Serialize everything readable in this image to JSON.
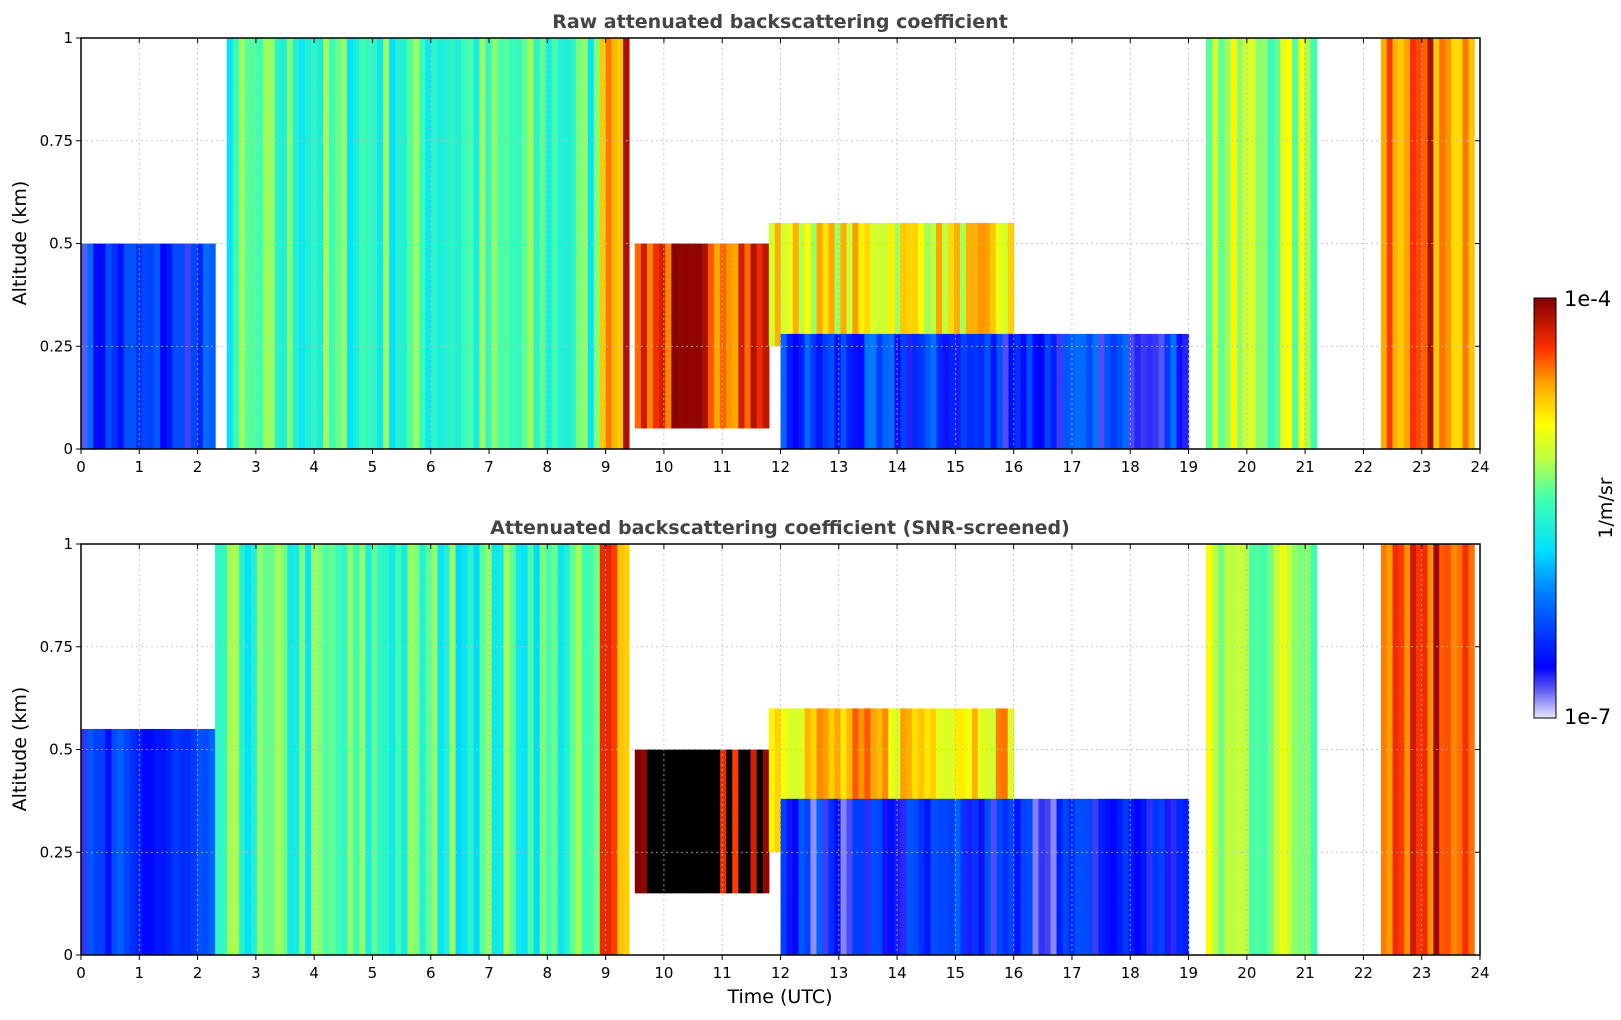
{
  "chart_data": [
    {
      "type": "heatmap",
      "title": "Raw attenuated backscattering coefficient",
      "xlabel": "",
      "ylabel": "Altitude (km)",
      "xlim": [
        0,
        24
      ],
      "ylim": [
        0,
        1
      ],
      "x_ticks": [
        "0",
        "1",
        "2",
        "3",
        "4",
        "5",
        "6",
        "7",
        "8",
        "9",
        "10",
        "11",
        "12",
        "13",
        "14",
        "15",
        "16",
        "17",
        "18",
        "19",
        "20",
        "21",
        "22",
        "23",
        "24"
      ],
      "y_ticks": [
        "0",
        "0.25",
        "0.5",
        "0.75",
        "1"
      ],
      "grid": "dotted",
      "colormap": "jet",
      "screened": false,
      "regions": [
        {
          "time": [
            0,
            2.3
          ],
          "altitude": [
            0,
            0.5
          ],
          "level": 0.18
        },
        {
          "time": [
            2.5,
            8.9
          ],
          "altitude": [
            0,
            1
          ],
          "level": 0.5
        },
        {
          "time": [
            8.9,
            9.4
          ],
          "altitude": [
            0,
            1
          ],
          "level": 0.85
        },
        {
          "time": [
            9.5,
            11.8
          ],
          "altitude": [
            0.05,
            0.5
          ],
          "level": 0.9
        },
        {
          "time": [
            11.8,
            16
          ],
          "altitude": [
            0.25,
            0.55
          ],
          "level": 0.7
        },
        {
          "time": [
            12,
            19
          ],
          "altitude": [
            0,
            0.28
          ],
          "level": 0.18
        },
        {
          "time": [
            19.3,
            21.2
          ],
          "altitude": [
            0,
            1
          ],
          "level": 0.6
        },
        {
          "time": [
            22.3,
            23.9
          ],
          "altitude": [
            0,
            1
          ],
          "level": 0.85
        }
      ]
    },
    {
      "type": "heatmap",
      "title": "Attenuated backscattering coefficient (SNR-screened)",
      "xlabel": "Time (UTC)",
      "ylabel": "Altitude (km)",
      "xlim": [
        0,
        24
      ],
      "ylim": [
        0,
        1
      ],
      "x_ticks": [
        "0",
        "1",
        "2",
        "3",
        "4",
        "5",
        "6",
        "7",
        "8",
        "9",
        "10",
        "11",
        "12",
        "13",
        "14",
        "15",
        "16",
        "17",
        "18",
        "19",
        "20",
        "21",
        "22",
        "23",
        "24"
      ],
      "y_ticks": [
        "0",
        "0.25",
        "0.5",
        "0.75",
        "1"
      ],
      "grid": "dotted",
      "colormap": "jet",
      "screened": true,
      "regions": [
        {
          "time": [
            0,
            2.3
          ],
          "altitude": [
            0,
            0.55
          ],
          "level": 0.15
        },
        {
          "time": [
            2.3,
            8.9
          ],
          "altitude": [
            0,
            1
          ],
          "level": 0.5
        },
        {
          "time": [
            8.9,
            9.4
          ],
          "altitude": [
            0,
            1
          ],
          "level": 0.85
        },
        {
          "time": [
            9.5,
            11.8
          ],
          "altitude": [
            0.15,
            0.5
          ],
          "level": 0.97
        },
        {
          "time": [
            11.8,
            16
          ],
          "altitude": [
            0.25,
            0.6
          ],
          "level": 0.75
        },
        {
          "time": [
            12,
            19
          ],
          "altitude": [
            0,
            0.38
          ],
          "level": 0.15
        },
        {
          "time": [
            19.3,
            21.2
          ],
          "altitude": [
            0,
            1
          ],
          "level": 0.6
        },
        {
          "time": [
            22.3,
            23.9
          ],
          "altitude": [
            0,
            1
          ],
          "level": 0.9
        }
      ]
    }
  ],
  "colorbar": {
    "label": "1/m/sr",
    "max_label": "1e-4",
    "min_label": "1e-7",
    "min_value": 1e-07,
    "max_value": 0.0001,
    "scale": "log"
  }
}
